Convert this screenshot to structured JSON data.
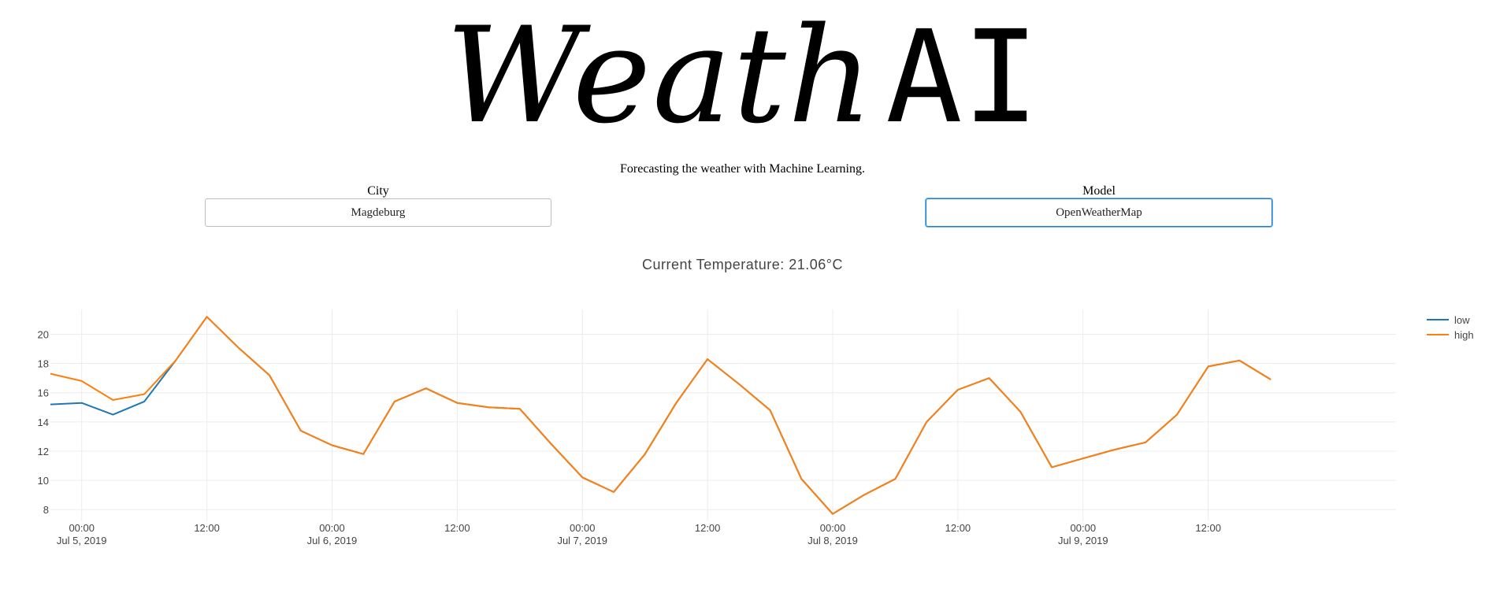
{
  "app": {
    "title_part1": "Weath",
    "title_part2": "AI",
    "subtitle": "Forecasting the weather with Machine Learning."
  },
  "controls": {
    "city": {
      "label": "City",
      "value": "Magdeburg"
    },
    "model": {
      "label": "Model",
      "value": "OpenWeatherMap"
    }
  },
  "current": {
    "label": "Current Temperature: 21.06°C"
  },
  "colors": {
    "low": "#1f77b4",
    "high": "#ff7f0e"
  },
  "chart_data": {
    "type": "line",
    "title": "",
    "xlabel": "",
    "ylabel": "",
    "ylim": [
      7.2,
      21.7
    ],
    "xlim": [
      "2019-07-04 21:00",
      "2019-07-10 06:00"
    ],
    "grid": true,
    "legend_position": "top-right",
    "x_ticks": [
      {
        "time": "2019-07-05 00:00",
        "line1": "00:00",
        "line2": "Jul 5, 2019"
      },
      {
        "time": "2019-07-05 12:00",
        "line1": "12:00",
        "line2": ""
      },
      {
        "time": "2019-07-06 00:00",
        "line1": "00:00",
        "line2": "Jul 6, 2019"
      },
      {
        "time": "2019-07-06 12:00",
        "line1": "12:00",
        "line2": ""
      },
      {
        "time": "2019-07-07 00:00",
        "line1": "00:00",
        "line2": "Jul 7, 2019"
      },
      {
        "time": "2019-07-07 12:00",
        "line1": "12:00",
        "line2": ""
      },
      {
        "time": "2019-07-08 00:00",
        "line1": "00:00",
        "line2": "Jul 8, 2019"
      },
      {
        "time": "2019-07-08 12:00",
        "line1": "12:00",
        "line2": ""
      },
      {
        "time": "2019-07-09 00:00",
        "line1": "00:00",
        "line2": "Jul 9, 2019"
      },
      {
        "time": "2019-07-09 12:00",
        "line1": "12:00",
        "line2": ""
      }
    ],
    "y_ticks": [
      8,
      10,
      12,
      14,
      16,
      18,
      20
    ],
    "x": [
      "2019-07-04 21:00",
      "2019-07-05 00:00",
      "2019-07-05 03:00",
      "2019-07-05 06:00",
      "2019-07-05 09:00",
      "2019-07-05 12:00",
      "2019-07-05 15:00",
      "2019-07-05 18:00",
      "2019-07-05 21:00",
      "2019-07-06 00:00",
      "2019-07-06 03:00",
      "2019-07-06 06:00",
      "2019-07-06 09:00",
      "2019-07-06 12:00",
      "2019-07-06 15:00",
      "2019-07-06 18:00",
      "2019-07-06 21:00",
      "2019-07-07 00:00",
      "2019-07-07 03:00",
      "2019-07-07 06:00",
      "2019-07-07 09:00",
      "2019-07-07 12:00",
      "2019-07-07 15:00",
      "2019-07-07 18:00",
      "2019-07-07 21:00",
      "2019-07-08 00:00",
      "2019-07-08 03:00",
      "2019-07-08 06:00",
      "2019-07-08 09:00",
      "2019-07-08 12:00",
      "2019-07-08 15:00",
      "2019-07-08 18:00",
      "2019-07-08 21:00",
      "2019-07-09 00:00",
      "2019-07-09 03:00",
      "2019-07-09 06:00",
      "2019-07-09 09:00",
      "2019-07-09 12:00",
      "2019-07-09 15:00",
      "2019-07-09 18:00"
    ],
    "series": [
      {
        "name": "low",
        "values": [
          15.2,
          15.3,
          14.5,
          15.4,
          18.2,
          21.2,
          19.1,
          17.2,
          13.4,
          12.4,
          11.8,
          15.4,
          16.3,
          15.3,
          15.0,
          14.9,
          12.5,
          10.2,
          9.2,
          11.8,
          15.3,
          18.3,
          16.6,
          14.8,
          10.1,
          7.7,
          9.0,
          10.1,
          14.0,
          16.2,
          17.0,
          14.7,
          10.9,
          11.5,
          12.1,
          12.6,
          14.5,
          17.8,
          18.2,
          16.9
        ]
      },
      {
        "name": "high",
        "values": [
          17.3,
          16.8,
          15.5,
          15.9,
          18.2,
          21.2,
          19.1,
          17.2,
          13.4,
          12.4,
          11.8,
          15.4,
          16.3,
          15.3,
          15.0,
          14.9,
          12.5,
          10.2,
          9.2,
          11.8,
          15.3,
          18.3,
          16.6,
          14.8,
          10.1,
          7.7,
          9.0,
          10.1,
          14.0,
          16.2,
          17.0,
          14.7,
          10.9,
          11.5,
          12.1,
          12.6,
          14.5,
          17.8,
          18.2,
          16.9
        ]
      }
    ]
  }
}
